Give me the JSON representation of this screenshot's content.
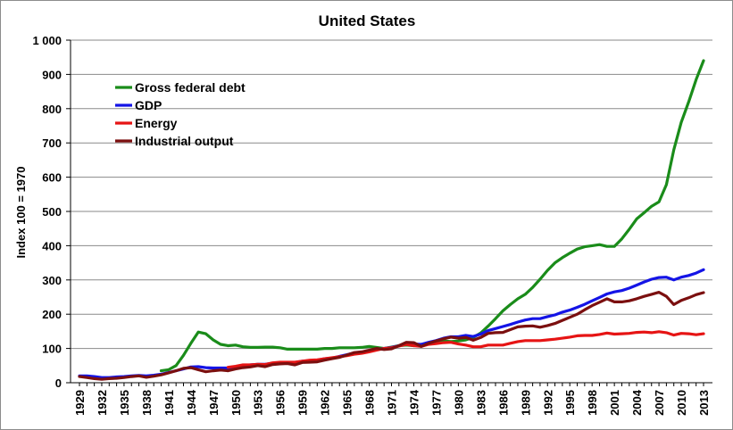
{
  "chart_data": {
    "type": "line",
    "title": "United States",
    "ylabel": "Index 100 = 1970",
    "xlabel": "",
    "ylim": [
      0,
      1000
    ],
    "y_ticks": [
      0,
      100,
      200,
      300,
      400,
      500,
      600,
      700,
      800,
      900,
      1000
    ],
    "y_tick_labels": [
      "0",
      "100",
      "200",
      "300",
      "400",
      "500",
      "600",
      "700",
      "800",
      "900",
      "1 000"
    ],
    "x_range": [
      1929,
      2013
    ],
    "x_ticks": [
      1929,
      1932,
      1935,
      1938,
      1941,
      1944,
      1947,
      1950,
      1953,
      1956,
      1959,
      1962,
      1965,
      1968,
      1971,
      1974,
      1977,
      1980,
      1983,
      1986,
      1989,
      1992,
      1995,
      1998,
      2001,
      2004,
      2007,
      2010,
      2013
    ],
    "grid": "horizontal",
    "legend_position": "top-left",
    "series": [
      {
        "name": "Gross federal debt",
        "color": "#1a8c1a",
        "points": [
          [
            1940,
            35
          ],
          [
            1941,
            38
          ],
          [
            1942,
            50
          ],
          [
            1943,
            80
          ],
          [
            1944,
            115
          ],
          [
            1945,
            148
          ],
          [
            1946,
            143
          ],
          [
            1947,
            125
          ],
          [
            1948,
            112
          ],
          [
            1949,
            108
          ],
          [
            1950,
            110
          ],
          [
            1951,
            105
          ],
          [
            1952,
            103
          ],
          [
            1953,
            103
          ],
          [
            1954,
            104
          ],
          [
            1955,
            104
          ],
          [
            1956,
            102
          ],
          [
            1957,
            98
          ],
          [
            1958,
            98
          ],
          [
            1959,
            98
          ],
          [
            1960,
            98
          ],
          [
            1961,
            98
          ],
          [
            1962,
            100
          ],
          [
            1963,
            100
          ],
          [
            1964,
            102
          ],
          [
            1965,
            102
          ],
          [
            1966,
            102
          ],
          [
            1967,
            103
          ],
          [
            1968,
            106
          ],
          [
            1969,
            103
          ],
          [
            1970,
            100
          ],
          [
            1971,
            104
          ],
          [
            1972,
            108
          ],
          [
            1973,
            110
          ],
          [
            1974,
            108
          ],
          [
            1975,
            112
          ],
          [
            1976,
            117
          ],
          [
            1977,
            120
          ],
          [
            1978,
            122
          ],
          [
            1979,
            120
          ],
          [
            1980,
            122
          ],
          [
            1981,
            125
          ],
          [
            1982,
            132
          ],
          [
            1983,
            145
          ],
          [
            1984,
            165
          ],
          [
            1985,
            187
          ],
          [
            1986,
            210
          ],
          [
            1987,
            228
          ],
          [
            1988,
            245
          ],
          [
            1989,
            258
          ],
          [
            1990,
            278
          ],
          [
            1991,
            302
          ],
          [
            1992,
            328
          ],
          [
            1993,
            350
          ],
          [
            1994,
            365
          ],
          [
            1995,
            378
          ],
          [
            1996,
            390
          ],
          [
            1997,
            397
          ],
          [
            1998,
            400
          ],
          [
            1999,
            403
          ],
          [
            2000,
            398
          ],
          [
            2001,
            398
          ],
          [
            2002,
            420
          ],
          [
            2003,
            448
          ],
          [
            2004,
            478
          ],
          [
            2005,
            496
          ],
          [
            2006,
            515
          ],
          [
            2007,
            528
          ],
          [
            2008,
            578
          ],
          [
            2009,
            680
          ],
          [
            2010,
            760
          ],
          [
            2011,
            820
          ],
          [
            2012,
            885
          ],
          [
            2013,
            940
          ]
        ]
      },
      {
        "name": "GDP",
        "color": "#1414e6",
        "points": [
          [
            1929,
            20
          ],
          [
            1930,
            20
          ],
          [
            1931,
            18
          ],
          [
            1932,
            15
          ],
          [
            1933,
            15
          ],
          [
            1934,
            17
          ],
          [
            1935,
            18
          ],
          [
            1936,
            20
          ],
          [
            1937,
            21
          ],
          [
            1938,
            20
          ],
          [
            1939,
            22
          ],
          [
            1940,
            25
          ],
          [
            1941,
            30
          ],
          [
            1942,
            35
          ],
          [
            1943,
            40
          ],
          [
            1944,
            46
          ],
          [
            1945,
            47
          ],
          [
            1946,
            44
          ],
          [
            1947,
            43
          ],
          [
            1948,
            43
          ],
          [
            1949,
            43
          ],
          [
            1950,
            47
          ],
          [
            1951,
            50
          ],
          [
            1952,
            52
          ],
          [
            1953,
            54
          ],
          [
            1954,
            54
          ],
          [
            1955,
            57
          ],
          [
            1956,
            58
          ],
          [
            1957,
            59
          ],
          [
            1958,
            59
          ],
          [
            1959,
            63
          ],
          [
            1960,
            64
          ],
          [
            1961,
            66
          ],
          [
            1962,
            70
          ],
          [
            1963,
            72
          ],
          [
            1964,
            77
          ],
          [
            1965,
            82
          ],
          [
            1966,
            87
          ],
          [
            1967,
            89
          ],
          [
            1968,
            94
          ],
          [
            1969,
            97
          ],
          [
            1970,
            100
          ],
          [
            1971,
            103
          ],
          [
            1972,
            108
          ],
          [
            1973,
            114
          ],
          [
            1974,
            113
          ],
          [
            1975,
            112
          ],
          [
            1976,
            118
          ],
          [
            1977,
            123
          ],
          [
            1978,
            130
          ],
          [
            1979,
            134
          ],
          [
            1980,
            134
          ],
          [
            1981,
            138
          ],
          [
            1982,
            135
          ],
          [
            1983,
            142
          ],
          [
            1984,
            152
          ],
          [
            1985,
            158
          ],
          [
            1986,
            164
          ],
          [
            1987,
            170
          ],
          [
            1988,
            177
          ],
          [
            1989,
            183
          ],
          [
            1990,
            187
          ],
          [
            1991,
            187
          ],
          [
            1992,
            193
          ],
          [
            1993,
            198
          ],
          [
            1994,
            206
          ],
          [
            1995,
            212
          ],
          [
            1996,
            220
          ],
          [
            1997,
            229
          ],
          [
            1998,
            239
          ],
          [
            1999,
            249
          ],
          [
            2000,
            259
          ],
          [
            2001,
            265
          ],
          [
            2002,
            269
          ],
          [
            2003,
            276
          ],
          [
            2004,
            285
          ],
          [
            2005,
            294
          ],
          [
            2006,
            302
          ],
          [
            2007,
            307
          ],
          [
            2008,
            308
          ],
          [
            2009,
            300
          ],
          [
            2010,
            308
          ],
          [
            2011,
            313
          ],
          [
            2012,
            320
          ],
          [
            2013,
            330
          ]
        ]
      },
      {
        "name": "Energy",
        "color": "#e61414",
        "points": [
          [
            1949,
            45
          ],
          [
            1950,
            48
          ],
          [
            1951,
            52
          ],
          [
            1952,
            52
          ],
          [
            1953,
            54
          ],
          [
            1954,
            53
          ],
          [
            1955,
            58
          ],
          [
            1956,
            60
          ],
          [
            1957,
            60
          ],
          [
            1958,
            60
          ],
          [
            1959,
            63
          ],
          [
            1960,
            66
          ],
          [
            1961,
            67
          ],
          [
            1962,
            70
          ],
          [
            1963,
            73
          ],
          [
            1964,
            76
          ],
          [
            1965,
            79
          ],
          [
            1966,
            83
          ],
          [
            1967,
            86
          ],
          [
            1968,
            90
          ],
          [
            1969,
            95
          ],
          [
            1970,
            100
          ],
          [
            1971,
            102
          ],
          [
            1972,
            107
          ],
          [
            1973,
            112
          ],
          [
            1974,
            108
          ],
          [
            1975,
            106
          ],
          [
            1976,
            112
          ],
          [
            1977,
            114
          ],
          [
            1978,
            117
          ],
          [
            1979,
            118
          ],
          [
            1980,
            113
          ],
          [
            1981,
            110
          ],
          [
            1982,
            105
          ],
          [
            1983,
            105
          ],
          [
            1984,
            110
          ],
          [
            1985,
            110
          ],
          [
            1986,
            110
          ],
          [
            1987,
            115
          ],
          [
            1988,
            120
          ],
          [
            1989,
            123
          ],
          [
            1990,
            123
          ],
          [
            1991,
            123
          ],
          [
            1992,
            125
          ],
          [
            1993,
            127
          ],
          [
            1994,
            130
          ],
          [
            1995,
            133
          ],
          [
            1996,
            137
          ],
          [
            1997,
            138
          ],
          [
            1998,
            138
          ],
          [
            1999,
            141
          ],
          [
            2000,
            145
          ],
          [
            2001,
            142
          ],
          [
            2002,
            143
          ],
          [
            2003,
            144
          ],
          [
            2004,
            147
          ],
          [
            2005,
            148
          ],
          [
            2006,
            146
          ],
          [
            2007,
            149
          ],
          [
            2008,
            146
          ],
          [
            2009,
            139
          ],
          [
            2010,
            144
          ],
          [
            2011,
            143
          ],
          [
            2012,
            140
          ],
          [
            2013,
            143
          ]
        ]
      },
      {
        "name": "Industrial output",
        "color": "#7b0f0f",
        "points": [
          [
            1929,
            18
          ],
          [
            1930,
            15
          ],
          [
            1931,
            12
          ],
          [
            1932,
            10
          ],
          [
            1933,
            12
          ],
          [
            1934,
            13
          ],
          [
            1935,
            15
          ],
          [
            1936,
            18
          ],
          [
            1937,
            20
          ],
          [
            1938,
            16
          ],
          [
            1939,
            19
          ],
          [
            1940,
            23
          ],
          [
            1941,
            29
          ],
          [
            1942,
            35
          ],
          [
            1943,
            42
          ],
          [
            1944,
            44
          ],
          [
            1945,
            38
          ],
          [
            1946,
            32
          ],
          [
            1947,
            35
          ],
          [
            1948,
            37
          ],
          [
            1949,
            35
          ],
          [
            1950,
            40
          ],
          [
            1951,
            44
          ],
          [
            1952,
            46
          ],
          [
            1953,
            50
          ],
          [
            1954,
            47
          ],
          [
            1955,
            53
          ],
          [
            1956,
            55
          ],
          [
            1957,
            56
          ],
          [
            1958,
            52
          ],
          [
            1959,
            59
          ],
          [
            1960,
            60
          ],
          [
            1961,
            61
          ],
          [
            1962,
            66
          ],
          [
            1963,
            70
          ],
          [
            1964,
            74
          ],
          [
            1965,
            81
          ],
          [
            1966,
            88
          ],
          [
            1967,
            90
          ],
          [
            1968,
            95
          ],
          [
            1969,
            100
          ],
          [
            1970,
            97
          ],
          [
            1971,
            99
          ],
          [
            1972,
            108
          ],
          [
            1973,
            118
          ],
          [
            1974,
            117
          ],
          [
            1975,
            106
          ],
          [
            1976,
            115
          ],
          [
            1977,
            122
          ],
          [
            1978,
            128
          ],
          [
            1979,
            133
          ],
          [
            1980,
            130
          ],
          [
            1981,
            132
          ],
          [
            1982,
            124
          ],
          [
            1983,
            132
          ],
          [
            1984,
            144
          ],
          [
            1985,
            146
          ],
          [
            1986,
            147
          ],
          [
            1987,
            155
          ],
          [
            1988,
            163
          ],
          [
            1989,
            165
          ],
          [
            1990,
            166
          ],
          [
            1991,
            162
          ],
          [
            1992,
            167
          ],
          [
            1993,
            173
          ],
          [
            1994,
            182
          ],
          [
            1995,
            191
          ],
          [
            1996,
            200
          ],
          [
            1997,
            213
          ],
          [
            1998,
            225
          ],
          [
            1999,
            235
          ],
          [
            2000,
            245
          ],
          [
            2001,
            236
          ],
          [
            2002,
            236
          ],
          [
            2003,
            239
          ],
          [
            2004,
            245
          ],
          [
            2005,
            252
          ],
          [
            2006,
            258
          ],
          [
            2007,
            264
          ],
          [
            2008,
            252
          ],
          [
            2009,
            228
          ],
          [
            2010,
            240
          ],
          [
            2011,
            248
          ],
          [
            2012,
            257
          ],
          [
            2013,
            263
          ]
        ]
      }
    ]
  }
}
